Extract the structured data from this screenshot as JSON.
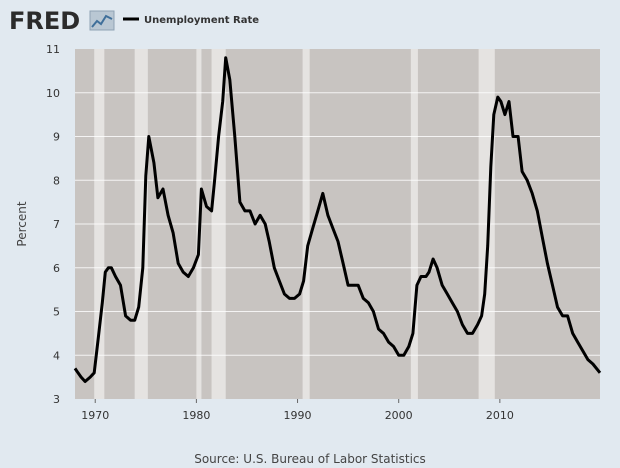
{
  "logo": {
    "text": "FRED"
  },
  "legend": {
    "label": "Unemployment Rate"
  },
  "source": "Source: U.S. Bureau of Labor Statistics",
  "colors": {
    "background": "#e1e9f0",
    "plot_background": "#c8c4c1",
    "recession": "#e5e3e1",
    "line": "#000000",
    "grid": "#ffffff"
  },
  "chart_data": {
    "type": "line",
    "title": "",
    "xlabel": "",
    "ylabel": "Percent",
    "xlim": [
      1968.0,
      2019.9
    ],
    "ylim": [
      3,
      11
    ],
    "x_ticks": [
      1970,
      1980,
      1990,
      2000,
      2010
    ],
    "y_ticks": [
      3,
      4,
      5,
      6,
      7,
      8,
      9,
      10,
      11
    ],
    "grid": true,
    "legend_position": "top-left",
    "recessions": [
      [
        1969.9,
        1970.9
      ],
      [
        1973.9,
        1975.2
      ],
      [
        1980.0,
        1980.5
      ],
      [
        1981.5,
        1982.9
      ],
      [
        1990.5,
        1991.2
      ],
      [
        2001.2,
        2001.9
      ],
      [
        2007.9,
        2009.5
      ]
    ],
    "series": [
      {
        "name": "Unemployment Rate",
        "x": [
          1968.0,
          1968.3,
          1968.6,
          1969.0,
          1969.5,
          1969.9,
          1970.3,
          1970.7,
          1971.0,
          1971.3,
          1971.6,
          1972.0,
          1972.5,
          1973.0,
          1973.5,
          1973.9,
          1974.3,
          1974.7,
          1975.0,
          1975.3,
          1975.8,
          1976.2,
          1976.7,
          1977.2,
          1977.7,
          1978.2,
          1978.7,
          1979.2,
          1979.7,
          1980.2,
          1980.5,
          1981.0,
          1981.5,
          1981.8,
          1982.2,
          1982.6,
          1982.9,
          1983.3,
          1983.8,
          1984.3,
          1984.8,
          1985.3,
          1985.8,
          1986.3,
          1986.8,
          1987.2,
          1987.7,
          1988.2,
          1988.7,
          1989.2,
          1989.7,
          1990.2,
          1990.6,
          1991.0,
          1991.5,
          1992.0,
          1992.5,
          1993.0,
          1993.5,
          1994.0,
          1994.5,
          1995.0,
          1995.5,
          1996.0,
          1996.5,
          1997.0,
          1997.5,
          1998.0,
          1998.5,
          1999.0,
          1999.5,
          2000.0,
          2000.5,
          2001.0,
          2001.4,
          2001.8,
          2002.2,
          2002.7,
          2003.0,
          2003.4,
          2003.8,
          2004.3,
          2004.8,
          2005.3,
          2005.8,
          2006.3,
          2006.8,
          2007.3,
          2007.8,
          2008.2,
          2008.5,
          2008.8,
          2009.1,
          2009.4,
          2009.8,
          2010.1,
          2010.5,
          2010.9,
          2011.3,
          2011.8,
          2012.2,
          2012.7,
          2013.2,
          2013.7,
          2014.2,
          2014.7,
          2015.2,
          2015.7,
          2016.2,
          2016.7,
          2017.2,
          2017.7,
          2018.2,
          2018.7,
          2019.2,
          2019.9
        ],
        "values": [
          3.7,
          3.6,
          3.5,
          3.4,
          3.5,
          3.6,
          4.4,
          5.2,
          5.9,
          6.0,
          6.0,
          5.8,
          5.6,
          4.9,
          4.8,
          4.8,
          5.1,
          6.0,
          8.1,
          9.0,
          8.4,
          7.6,
          7.8,
          7.2,
          6.8,
          6.1,
          5.9,
          5.8,
          6.0,
          6.3,
          7.8,
          7.4,
          7.3,
          8.0,
          9.0,
          9.8,
          10.8,
          10.3,
          9.0,
          7.5,
          7.3,
          7.3,
          7.0,
          7.2,
          7.0,
          6.6,
          6.0,
          5.7,
          5.4,
          5.3,
          5.3,
          5.4,
          5.7,
          6.5,
          6.9,
          7.3,
          7.7,
          7.2,
          6.9,
          6.6,
          6.1,
          5.6,
          5.6,
          5.6,
          5.3,
          5.2,
          5.0,
          4.6,
          4.5,
          4.3,
          4.2,
          4.0,
          4.0,
          4.2,
          4.5,
          5.6,
          5.8,
          5.8,
          5.9,
          6.2,
          6.0,
          5.6,
          5.4,
          5.2,
          5.0,
          4.7,
          4.5,
          4.5,
          4.7,
          4.9,
          5.4,
          6.5,
          8.3,
          9.5,
          9.9,
          9.8,
          9.5,
          9.8,
          9.0,
          9.0,
          8.2,
          8.0,
          7.7,
          7.3,
          6.7,
          6.1,
          5.6,
          5.1,
          4.9,
          4.9,
          4.5,
          4.3,
          4.1,
          3.9,
          3.8,
          3.6
        ]
      }
    ]
  }
}
